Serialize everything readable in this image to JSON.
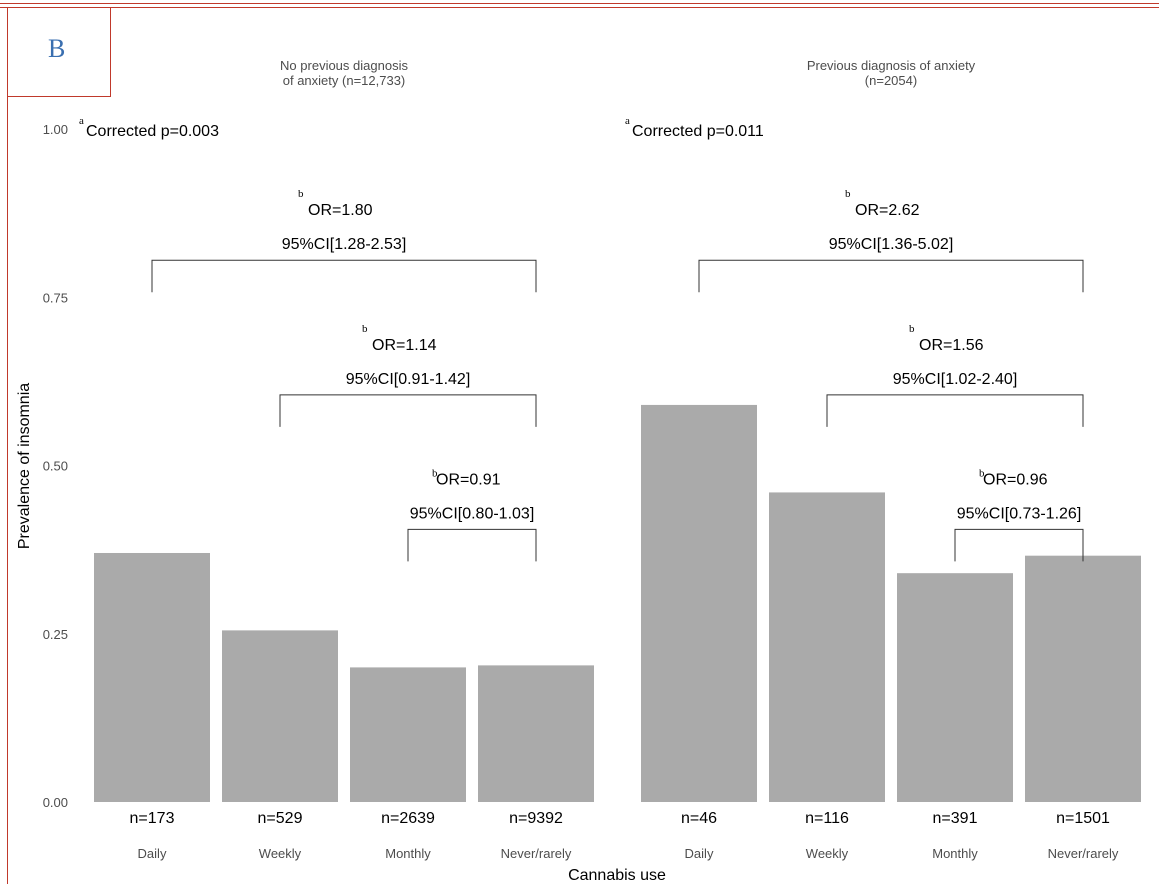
{
  "panel_label": "B",
  "colors": {
    "bar": "#aaaaaa",
    "text": "#000000",
    "axis_text": "#4d4d4d",
    "frame": "#c0392b",
    "panel_label": "#3a6fb0"
  },
  "chart_data": {
    "type": "bar",
    "xlabel": "Cannabis use",
    "ylabel": "Prevalence of insomnia",
    "ylim": [
      0,
      1.0
    ],
    "yticks": [
      "0.00",
      "0.25",
      "0.50",
      "0.75",
      "1.00"
    ],
    "categories": [
      "Daily",
      "Weekly",
      "Monthly",
      "Never/rarely"
    ],
    "facets": [
      {
        "title_lines": [
          "No previous diagnosis",
          "of anxiety (n=12,733)"
        ],
        "values": [
          0.37,
          0.255,
          0.2,
          0.203
        ],
        "n_labels": [
          "n=173",
          "n=529",
          "n=2639",
          "n=9392"
        ],
        "corrected_sup": "a",
        "corrected": "Corrected p=0.003",
        "brackets": [
          {
            "from": 0,
            "to": 3,
            "sup": "b",
            "or": "OR=1.80",
            "ci": "95%CI[1.28-2.53]",
            "y": 0.805
          },
          {
            "from": 1,
            "to": 3,
            "sup": "b",
            "or": "OR=1.14",
            "ci": "95%CI[0.91-1.42]",
            "y": 0.605
          },
          {
            "from": 2,
            "to": 3,
            "sup": "b",
            "or": "OR=0.91",
            "ci": "95%CI[0.80-1.03]",
            "y": 0.405
          }
        ]
      },
      {
        "title_lines": [
          "Previous diagnosis of anxiety",
          "(n=2054)"
        ],
        "values": [
          0.59,
          0.46,
          0.34,
          0.366
        ],
        "n_labels": [
          "n=46",
          "n=116",
          "n=391",
          "n=1501"
        ],
        "corrected_sup": "a",
        "corrected": "Corrected p=0.011",
        "brackets": [
          {
            "from": 0,
            "to": 3,
            "sup": "b",
            "or": "OR=2.62",
            "ci": "95%CI[1.36-5.02]",
            "y": 0.805
          },
          {
            "from": 1,
            "to": 3,
            "sup": "b",
            "or": "OR=1.56",
            "ci": "95%CI[1.02-2.40]",
            "y": 0.605
          },
          {
            "from": 2,
            "to": 3,
            "sup": "b",
            "or": "OR=0.96",
            "ci": "95%CI[0.73-1.26]",
            "y": 0.405
          }
        ]
      }
    ]
  }
}
